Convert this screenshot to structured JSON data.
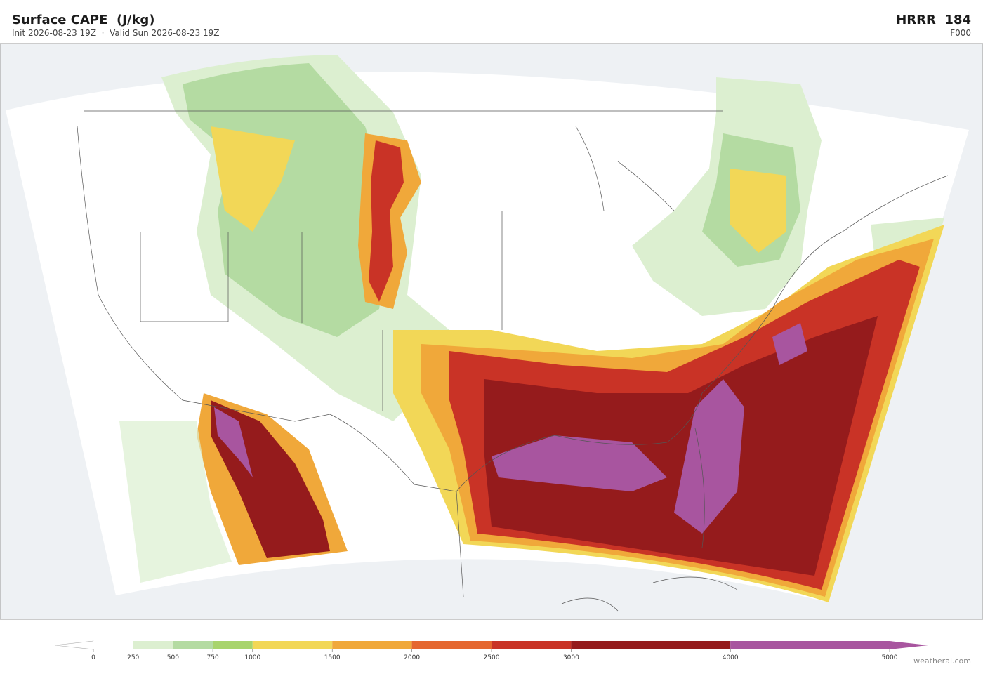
{
  "header": {
    "title": "Surface CAPE  (J/kg)",
    "subtitle": "Init 2026-08-23 19Z  ·  Valid Sun 2026-08-23 19Z",
    "model": "HRRR  184",
    "forecast_hour": "F000"
  },
  "colorbar": {
    "ticks": [
      0,
      250,
      500,
      750,
      1000,
      1500,
      2000,
      2500,
      3000,
      4000,
      5000
    ],
    "colors": [
      "#ffffff",
      "#dcefd0",
      "#b4dba2",
      "#a8d46c",
      "#f2d757",
      "#f0a83a",
      "#e5672f",
      "#c93326",
      "#951b1c",
      "#a8559f"
    ]
  },
  "credit": "weatherai.com"
}
